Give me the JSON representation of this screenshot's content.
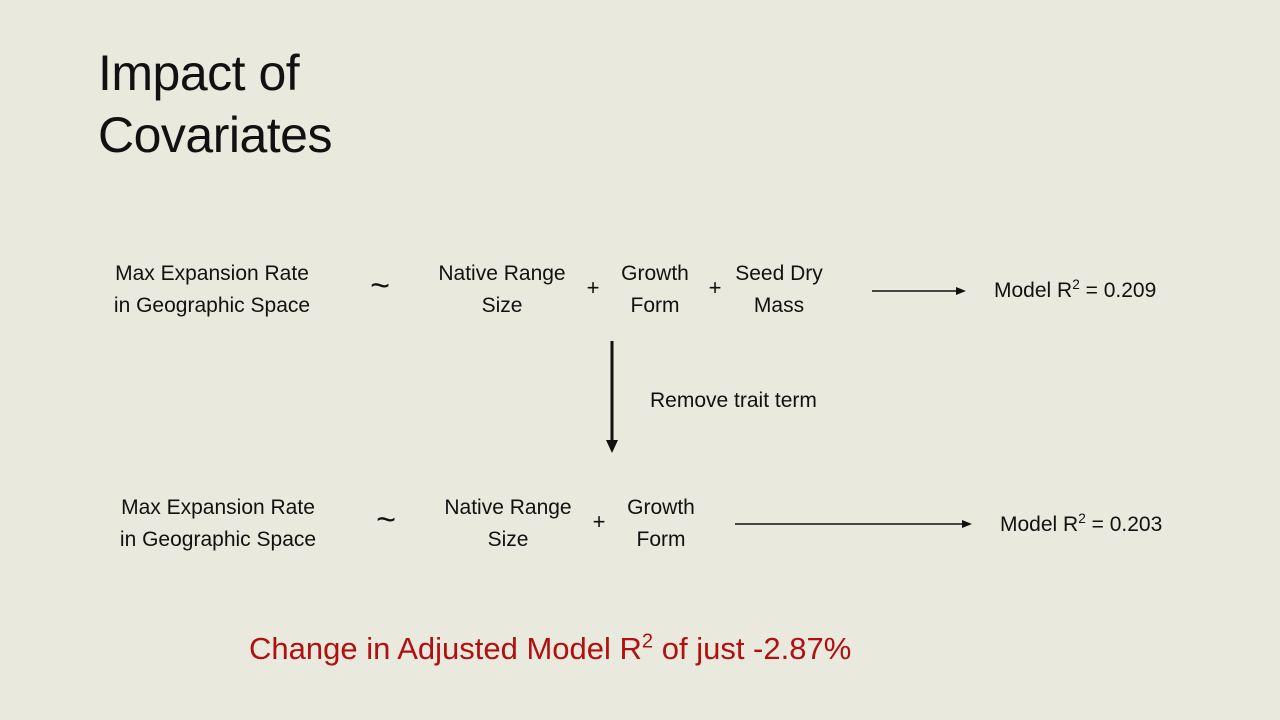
{
  "title": {
    "line1": "Impact of",
    "line2": "Covariates"
  },
  "model_full": {
    "response_line1": "Max Expansion Rate",
    "response_line2": "in Geographic Space",
    "tilde": "~",
    "term1_line1": "Native Range",
    "term1_line2": "Size",
    "plus1": "+",
    "term2_line1": "Growth",
    "term2_line2": "Form",
    "plus2": "+",
    "term3_line1": "Seed Dry",
    "term3_line2": "Mass",
    "r2_prefix": "Model R",
    "r2_sup": "2",
    "r2_value": " = 0.209"
  },
  "transition_label": "Remove trait term",
  "model_reduced": {
    "response_line1": "Max Expansion Rate",
    "response_line2": "in Geographic Space",
    "tilde": "~",
    "term1_line1": "Native Range",
    "term1_line2": "Size",
    "plus1": "+",
    "term2_line1": "Growth",
    "term2_line2": "Form",
    "r2_prefix": "Model R",
    "r2_sup": "2",
    "r2_value": " = 0.203"
  },
  "footer": {
    "prefix": "Change in Adjusted Model R",
    "sup": "2",
    "suffix": " of just -2.87%"
  },
  "colors": {
    "background": "#e9e9dd",
    "text": "#111111",
    "accent": "#b01010"
  }
}
